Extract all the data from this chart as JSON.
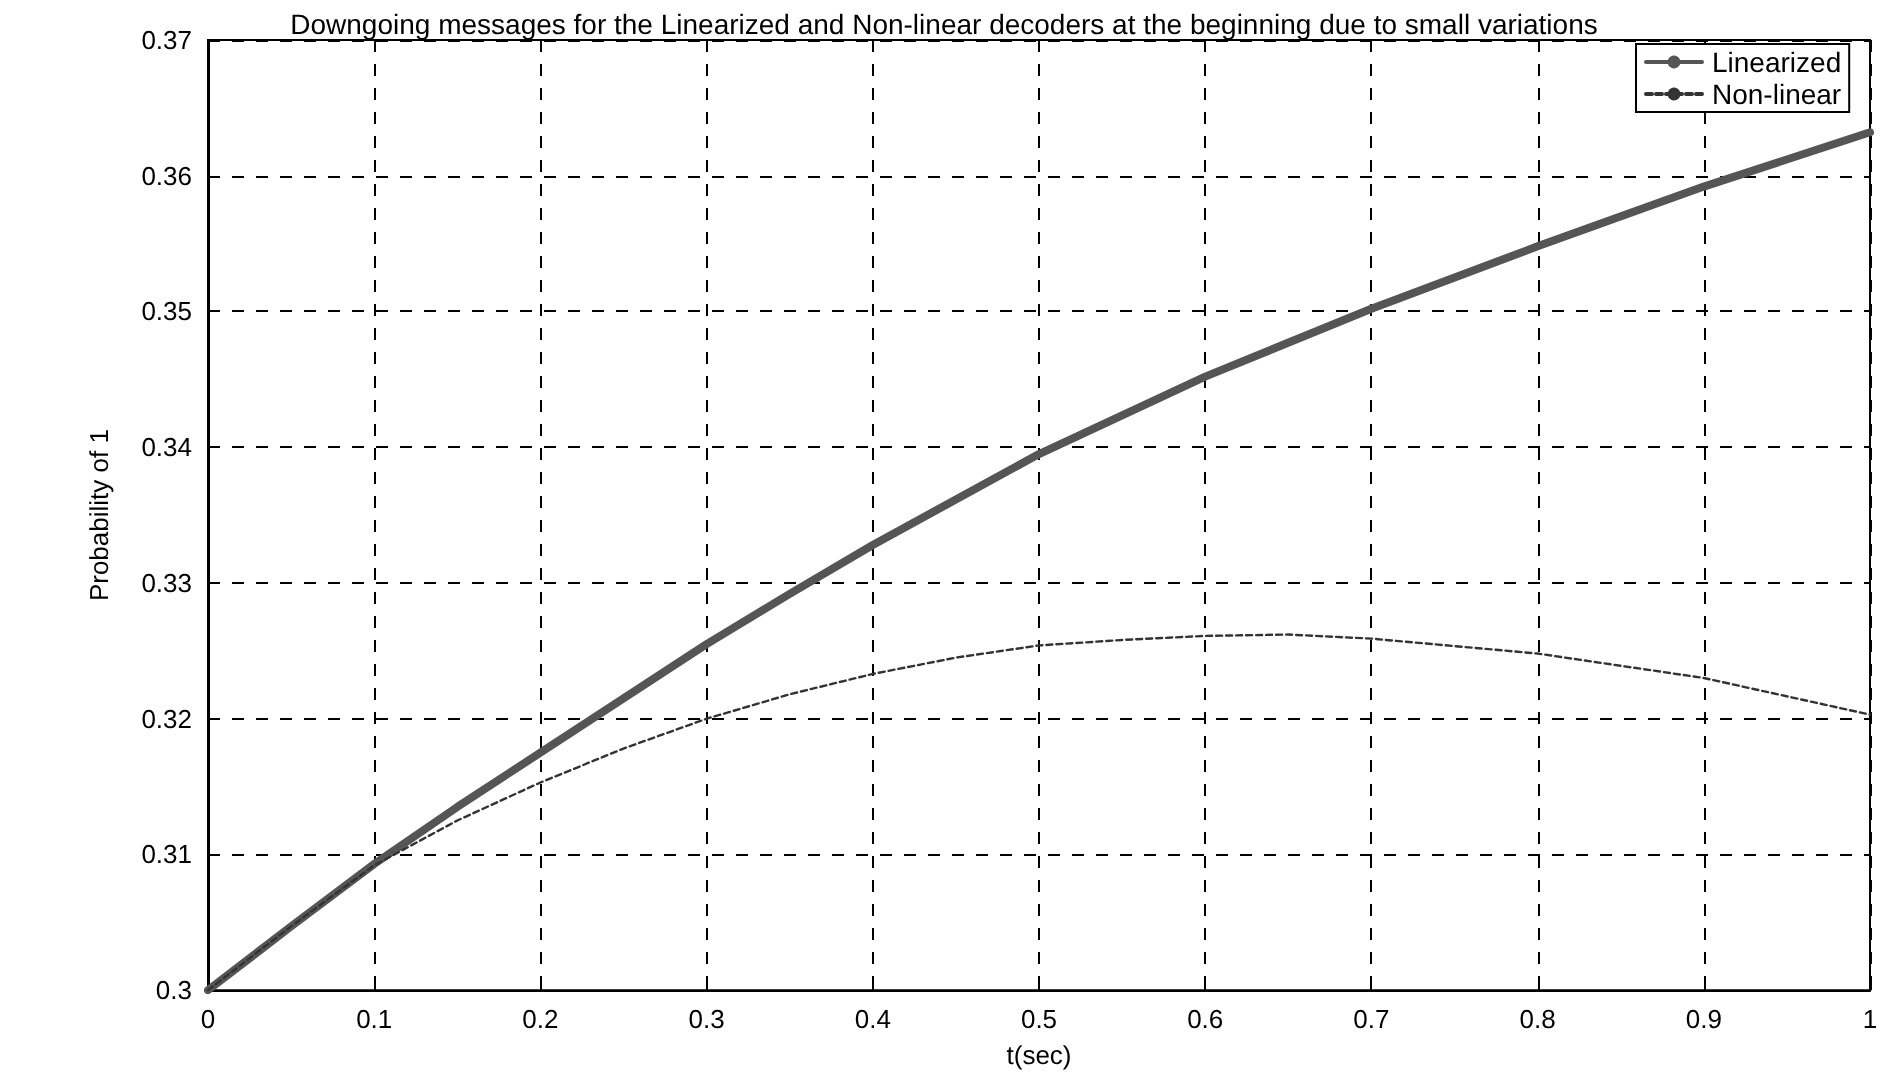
{
  "chart_data": {
    "type": "line",
    "title": "Downgoing messages for the Linearized and Non-linear decoders at the beginning due to small variations",
    "xlabel": "t(sec)",
    "ylabel": "Probability of 1",
    "xlim": [
      0,
      1
    ],
    "xticks": [
      0,
      0.1,
      0.2,
      0.3,
      0.4,
      0.5,
      0.6,
      0.7,
      0.8,
      0.9,
      1
    ],
    "ylim": [
      0.3,
      0.37
    ],
    "yticks": [
      0.3,
      0.31,
      0.32,
      0.33,
      0.34,
      0.35,
      0.36,
      0.37
    ],
    "grid": true,
    "legend": "top right",
    "marker": "none",
    "series": [
      {
        "name": "Linearized",
        "color": "#555555",
        "line_style": "solid",
        "x": [
          0,
          0.05,
          0.1,
          0.15,
          0.2,
          0.25,
          0.3,
          0.35,
          0.4,
          0.5,
          0.6,
          0.7,
          0.8,
          0.9,
          1
        ],
        "values": [
          0.3,
          0.3047,
          0.3093,
          0.3135,
          0.3175,
          0.3215,
          0.3255,
          0.3292,
          0.3328,
          0.3395,
          0.3452,
          0.3502,
          0.3548,
          0.3592,
          0.3632
        ]
      },
      {
        "name": "Non-linear",
        "color": "#333333",
        "line_style": "dashed",
        "x": [
          0,
          0.05,
          0.1,
          0.15,
          0.2,
          0.25,
          0.3,
          0.35,
          0.4,
          0.45,
          0.5,
          0.55,
          0.6,
          0.65,
          0.7,
          0.8,
          0.9,
          1
        ],
        "values": [
          0.3,
          0.3047,
          0.3092,
          0.3125,
          0.3153,
          0.3178,
          0.32,
          0.3218,
          0.3233,
          0.3245,
          0.3254,
          0.3258,
          0.3261,
          0.3262,
          0.3259,
          0.3248,
          0.323,
          0.3203
        ]
      }
    ]
  }
}
